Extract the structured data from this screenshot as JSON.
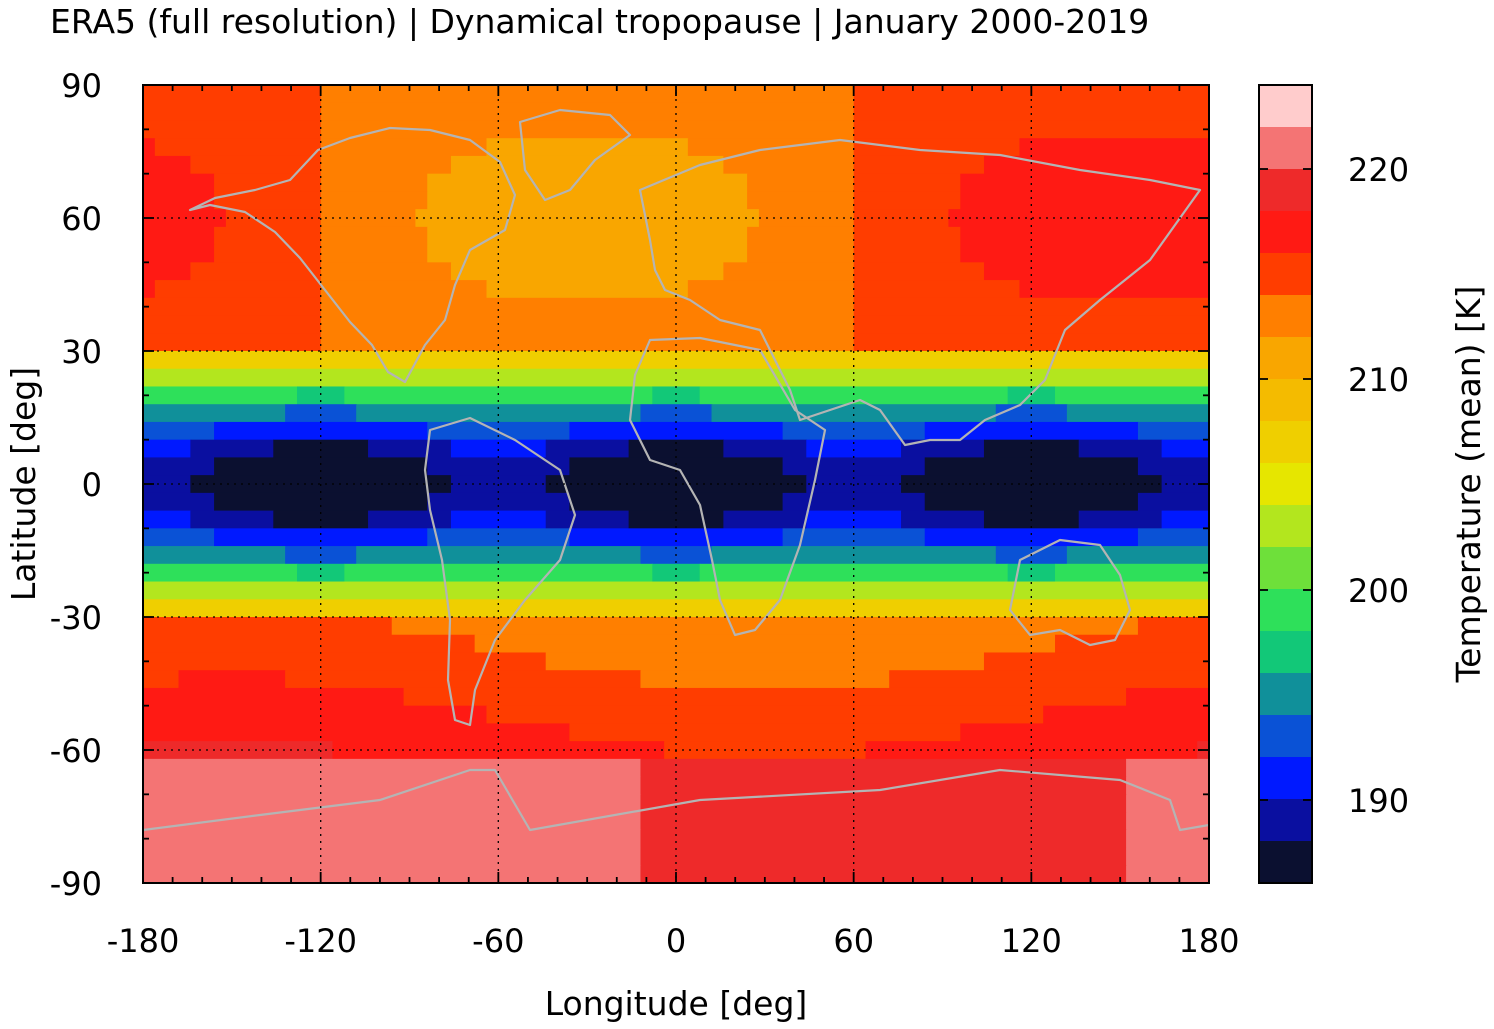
{
  "title": "ERA5 (full resolution) | Dynamical tropopause | January 2000-2019",
  "map": {
    "projection": "equirectangular",
    "lon_range": [
      -180,
      180
    ],
    "lat_range": [
      -90,
      90
    ],
    "coastline_color": "#b4b4b4",
    "grid": "dotted",
    "xlabel": "Longitude [deg]",
    "ylabel": "Latitude [deg]",
    "xticks": [
      "-180",
      "-120",
      "-60",
      "0",
      "60",
      "120",
      "180"
    ],
    "yticks": [
      "90",
      "60",
      "30",
      "0",
      "-30",
      "-60",
      "-90"
    ]
  },
  "colorbar": {
    "label": "Temperature (mean) [K]",
    "tick_labels": [
      "220",
      "210",
      "200",
      "190"
    ],
    "levels": [
      {
        "color": "#ffcccc"
      },
      {
        "color": "#f47474"
      },
      {
        "color": "#ee2a2a"
      },
      {
        "color": "#ff1a14"
      },
      {
        "color": "#ff3d00"
      },
      {
        "color": "#ff7f00"
      },
      {
        "color": "#f9a600"
      },
      {
        "color": "#f4bb00"
      },
      {
        "color": "#efcf00"
      },
      {
        "color": "#e6e600"
      },
      {
        "color": "#b3e61e"
      },
      {
        "color": "#6ee03a"
      },
      {
        "color": "#2ee05a"
      },
      {
        "color": "#12c878"
      },
      {
        "color": "#10909a"
      },
      {
        "color": "#0a52d6"
      },
      {
        "color": "#0019ff"
      },
      {
        "color": "#0a0fa0"
      },
      {
        "color": "#0b1030"
      }
    ]
  }
}
